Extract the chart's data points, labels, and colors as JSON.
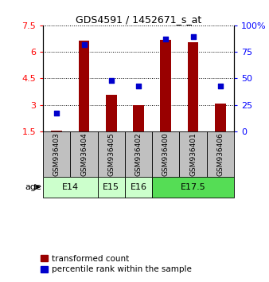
{
  "title": "GDS4591 / 1452671_s_at",
  "samples": [
    "GSM936403",
    "GSM936404",
    "GSM936405",
    "GSM936402",
    "GSM936400",
    "GSM936401",
    "GSM936406"
  ],
  "transformed_count": [
    1.55,
    6.65,
    3.55,
    3.0,
    6.7,
    6.55,
    3.05
  ],
  "percentile_rank": [
    17,
    82,
    48,
    43,
    87,
    89,
    43
  ],
  "age_groups": [
    {
      "label": "E14",
      "samples": [
        "GSM936403",
        "GSM936404"
      ],
      "color": "#ccffcc"
    },
    {
      "label": "E15",
      "samples": [
        "GSM936405"
      ],
      "color": "#ccffcc"
    },
    {
      "label": "E16",
      "samples": [
        "GSM936402"
      ],
      "color": "#ccffcc"
    },
    {
      "label": "E17.5",
      "samples": [
        "GSM936400",
        "GSM936401",
        "GSM936406"
      ],
      "color": "#55dd55"
    }
  ],
  "ylim_left": [
    1.5,
    7.5
  ],
  "ylim_right": [
    0,
    100
  ],
  "yticks_left": [
    1.5,
    3.0,
    4.5,
    6.0,
    7.5
  ],
  "yticks_right": [
    0,
    25,
    50,
    75,
    100
  ],
  "ytick_labels_left": [
    "1.5",
    "3",
    "4.5",
    "6",
    "7.5"
  ],
  "ytick_labels_right": [
    "0",
    "25",
    "50",
    "75",
    "100%"
  ],
  "bar_color": "#990000",
  "dot_color": "#0000cc",
  "bar_width": 0.4,
  "legend_bar_label": "transformed count",
  "legend_dot_label": "percentile rank within the sample",
  "age_label": "age",
  "sample_box_color": "#c0c0c0",
  "plot_bg": "#ffffff"
}
